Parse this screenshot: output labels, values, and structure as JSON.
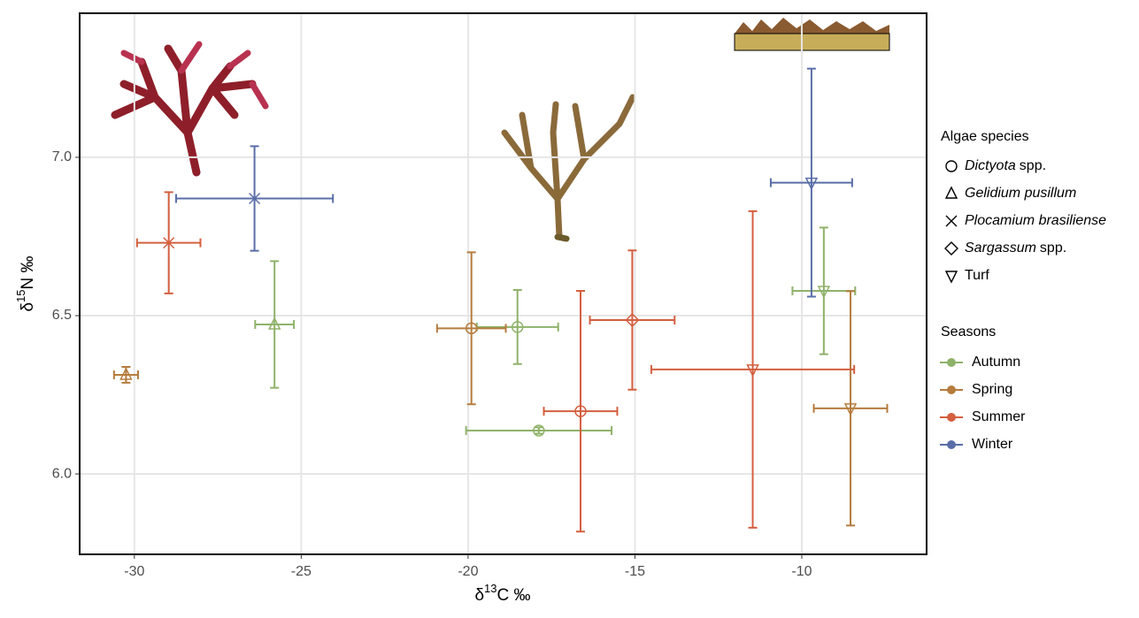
{
  "chart_data": {
    "type": "scatter",
    "x_label": {
      "prefix": "δ",
      "sup": "13",
      "text": "C ‰"
    },
    "y_label": {
      "prefix": "δ",
      "sup": "15",
      "text": "N ‰"
    },
    "xlim": [
      -31.64,
      -6.26
    ],
    "ylim": [
      5.746,
      7.455
    ],
    "xticks": [
      -30,
      -25,
      -20,
      -15,
      -10
    ],
    "yticks": [
      {
        "value": 6,
        "label": "6.0"
      },
      {
        "value": 6.5,
        "label": "6.5"
      },
      {
        "value": 7,
        "label": "7.0"
      }
    ],
    "grid": true,
    "species_title": "Algae species",
    "species": [
      {
        "name": "Dictyota",
        "suffix": "spp.",
        "marker": "circle"
      },
      {
        "name": "Gelidium pusillum",
        "suffix": "",
        "marker": "triangle"
      },
      {
        "name": "Plocamium brasiliense",
        "suffix": "",
        "marker": "cross"
      },
      {
        "name": "Sargassum",
        "suffix": "spp.",
        "marker": "diamond"
      },
      {
        "name": "",
        "suffix": "Turf",
        "marker": "down-triangle"
      }
    ],
    "legend_title": "Seasons",
    "series": [
      {
        "name": "Autumn",
        "color": "#8fb26a",
        "markers": [
          "triangle",
          "circle",
          "circle",
          "down-triangle"
        ],
        "x": [
          -25.8,
          -18.52,
          -17.88,
          -9.34
        ],
        "values": [
          6.472,
          6.464,
          6.137,
          6.578
        ],
        "xerr": [
          0.58,
          1.22,
          2.18,
          0.94
        ],
        "yerr": [
          0.2,
          0.117,
          0.01,
          0.2
        ]
      },
      {
        "name": "Spring",
        "color": "#b57c3e",
        "markers": [
          "triangle",
          "circle",
          "down-triangle"
        ],
        "x": [
          -30.25,
          -19.9,
          -8.54
        ],
        "values": [
          6.313,
          6.46,
          6.207
        ],
        "xerr": [
          0.36,
          1.03,
          1.1
        ],
        "yerr": [
          0.025,
          0.24,
          0.37
        ]
      },
      {
        "name": "Summer",
        "color": "#d35f3f",
        "markers": [
          "cross",
          "circle",
          "diamond",
          "down-triangle"
        ],
        "x": [
          -28.97,
          -16.63,
          -15.08,
          -11.47
        ],
        "values": [
          6.73,
          6.198,
          6.486,
          6.33
        ],
        "xerr": [
          0.95,
          1.1,
          1.27,
          3.04
        ],
        "yerr": [
          0.16,
          0.38,
          0.22,
          0.5
        ]
      },
      {
        "name": "Winter",
        "color": "#5a6ea8",
        "markers": [
          "cross",
          "down-triangle"
        ],
        "x": [
          -26.4,
          -9.71
        ],
        "values": [
          6.87,
          6.92
        ],
        "xerr": [
          2.35,
          1.22
        ],
        "yerr": [
          0.165,
          0.36
        ]
      }
    ]
  }
}
